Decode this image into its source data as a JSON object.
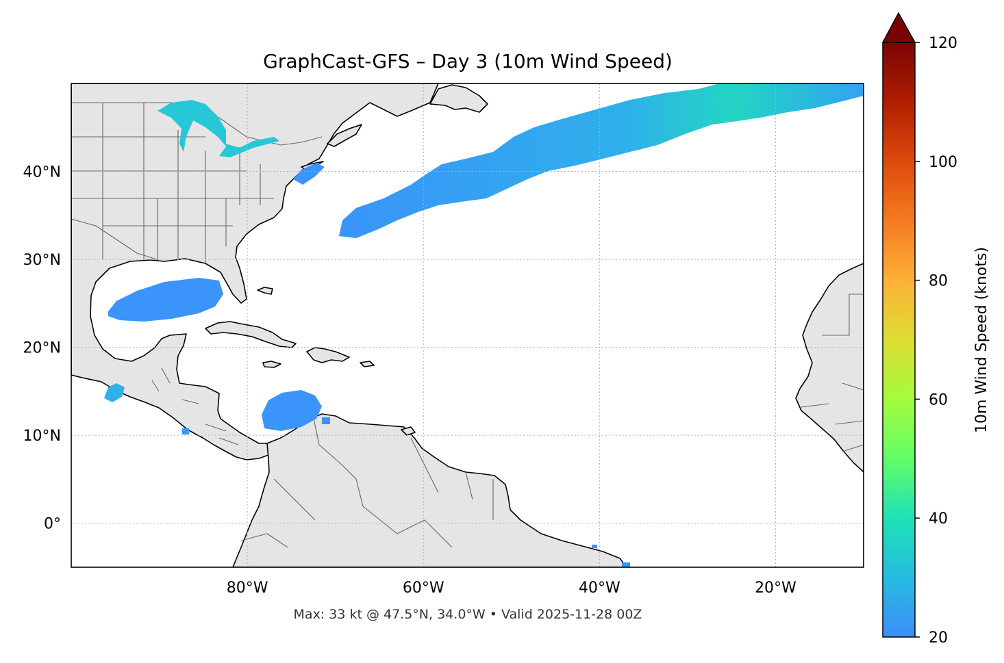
{
  "title": "GraphCast-GFS – Day 3 (10m Wind Speed)",
  "footer": "Max: 33 kt @ 47.5°N, 34.0°W • Valid 2025-11-28 00Z",
  "map": {
    "lon_range": [
      -100,
      -10
    ],
    "lat_range": [
      -5,
      50
    ],
    "lon_ticks": [
      {
        "value": -80,
        "label": "80°W"
      },
      {
        "value": -60,
        "label": "60°W"
      },
      {
        "value": -40,
        "label": "40°W"
      },
      {
        "value": -20,
        "label": "20°W"
      }
    ],
    "lat_ticks": [
      {
        "value": 40,
        "label": "40°N"
      },
      {
        "value": 30,
        "label": "30°N"
      },
      {
        "value": 20,
        "label": "20°N"
      },
      {
        "value": 10,
        "label": "10°N"
      },
      {
        "value": 0,
        "label": "0°"
      }
    ],
    "gridlines": true,
    "land_color": "#e5e5e5",
    "ocean_color": "#ffffff"
  },
  "colorbar": {
    "label": "10m Wind Speed (knots)",
    "range": [
      20,
      120
    ],
    "extend": "max",
    "ticks": [
      {
        "value": 20,
        "label": "20"
      },
      {
        "value": 40,
        "label": "40"
      },
      {
        "value": 60,
        "label": "60"
      },
      {
        "value": 80,
        "label": "80"
      },
      {
        "value": 100,
        "label": "100"
      },
      {
        "value": 120,
        "label": "120"
      }
    ],
    "colormap": "turbo"
  },
  "wind_features": [
    {
      "name": "north-atlantic-jet",
      "speed_kt": 28
    },
    {
      "name": "gulf-of-mexico",
      "speed_kt": 24
    },
    {
      "name": "caribbean-colombia",
      "speed_kt": 24
    },
    {
      "name": "gulf-of-tehuantepec",
      "speed_kt": 27
    },
    {
      "name": "great-lakes",
      "speed_kt": 30
    },
    {
      "name": "gulf-of-maine",
      "speed_kt": 23
    }
  ],
  "max_wind": {
    "speed_kt": 33,
    "lat": 47.5,
    "lon": -34.0
  }
}
